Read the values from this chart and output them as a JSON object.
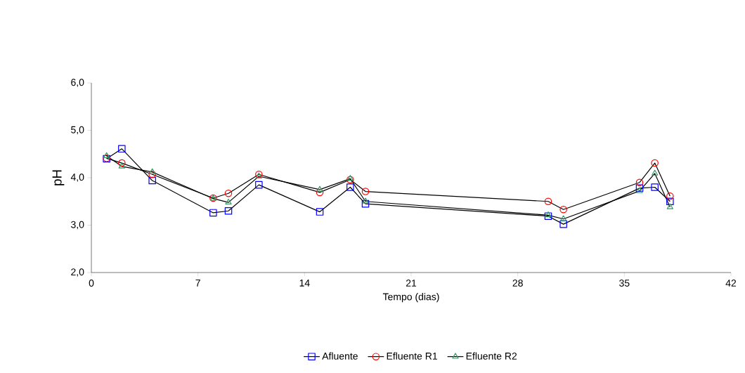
{
  "chart_data": {
    "type": "line",
    "xlabel": "Tempo (dias)",
    "ylabel": "pH",
    "x": [
      1,
      2,
      4,
      8,
      9,
      11,
      15,
      17,
      18,
      30,
      31,
      36,
      37,
      38
    ],
    "series": [
      {
        "name": "Afluente",
        "color": "#0000ff",
        "marker": "square",
        "values": [
          4.4,
          4.61,
          3.94,
          3.26,
          3.3,
          3.85,
          3.28,
          3.8,
          3.45,
          3.19,
          3.02,
          3.78,
          3.8,
          3.5
        ]
      },
      {
        "name": "Efluente R1",
        "color": "#ff0000",
        "marker": "circle",
        "values": [
          4.41,
          4.31,
          4.07,
          3.57,
          3.67,
          4.07,
          3.69,
          3.96,
          3.71,
          3.5,
          3.33,
          3.9,
          4.31,
          3.61
        ]
      },
      {
        "name": "Efluente R2",
        "color": "#339966",
        "marker": "triangle",
        "values": [
          4.46,
          4.24,
          4.12,
          3.56,
          3.48,
          4.03,
          3.75,
          3.98,
          3.5,
          3.21,
          3.13,
          3.72,
          4.09,
          3.38
        ]
      }
    ],
    "xlim": [
      0,
      42
    ],
    "xticks": [
      0,
      7,
      14,
      21,
      28,
      35,
      42
    ],
    "ylim": [
      2,
      6
    ],
    "yticks": [
      {
        "value": 2,
        "label": "2,0"
      },
      {
        "value": 3,
        "label": "3,0"
      },
      {
        "value": 4,
        "label": "4,0"
      },
      {
        "value": 5,
        "label": "5,0"
      },
      {
        "value": 6,
        "label": "6,0"
      }
    ],
    "grid": false,
    "legend": "bottom"
  }
}
